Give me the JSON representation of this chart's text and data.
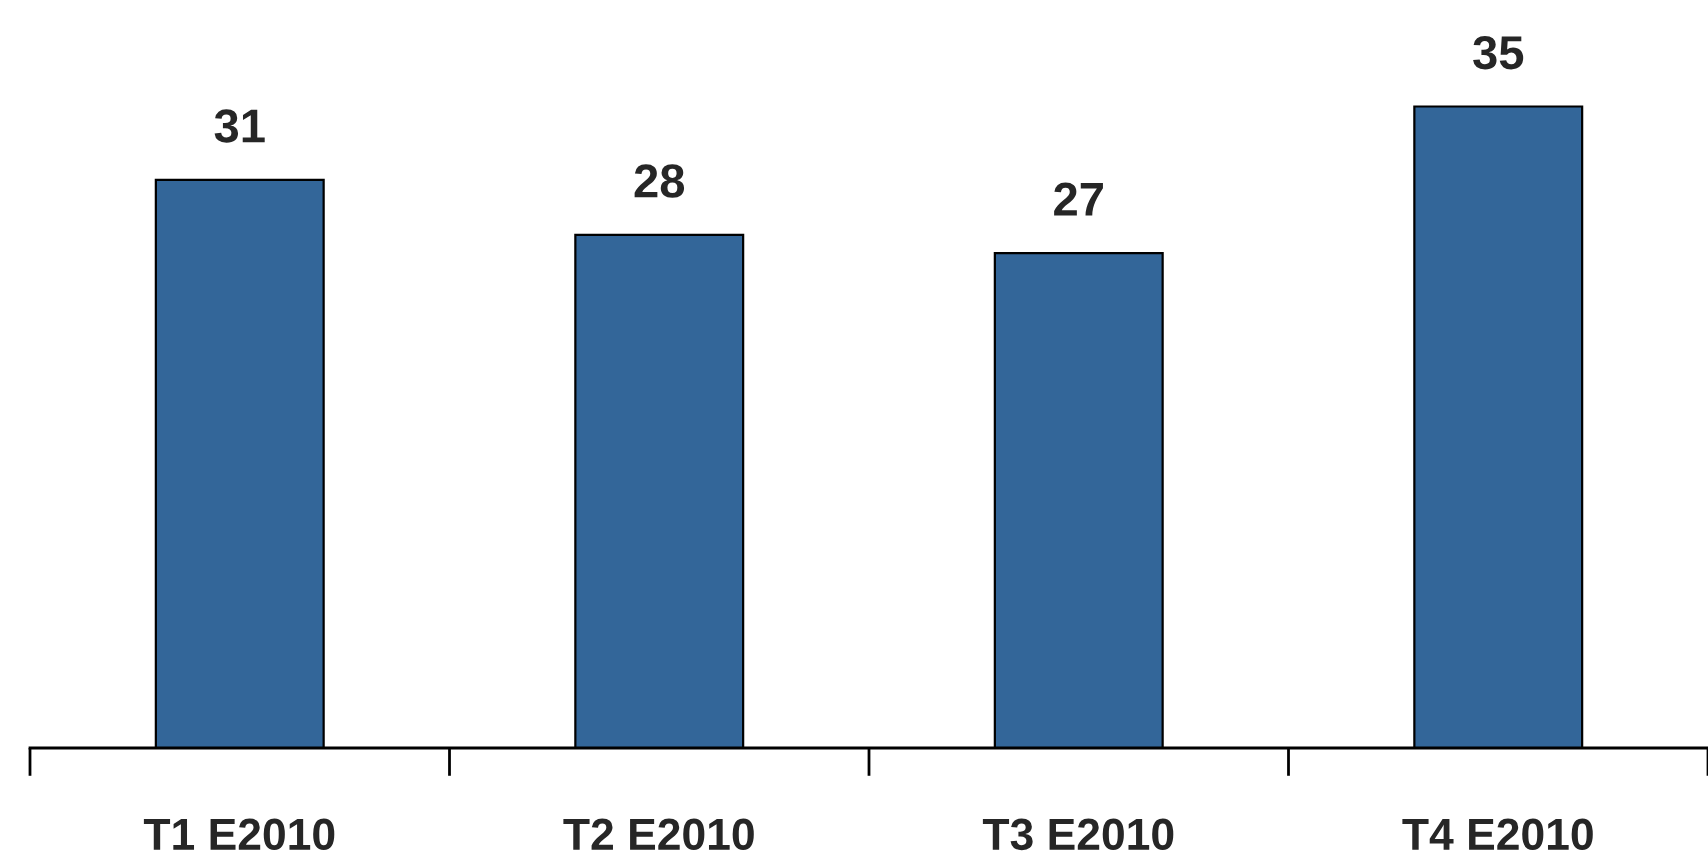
{
  "chart_data": {
    "type": "bar",
    "categories": [
      "T1 E2010",
      "T2 E2010",
      "T3 E2010",
      "T4 E2010"
    ],
    "values": [
      31,
      28,
      27,
      35
    ],
    "color": "#336699",
    "data_labels": true
  }
}
